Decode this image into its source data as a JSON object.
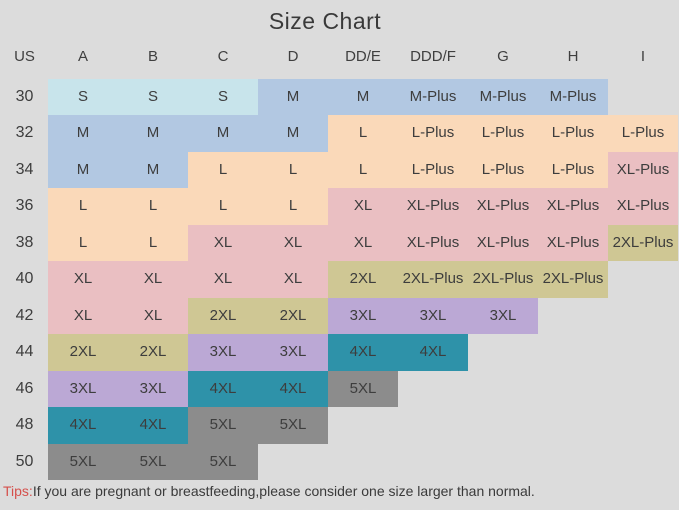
{
  "title": "Size Chart",
  "palette": {
    "background": "#dcdcdc",
    "cyan": "#c8e4eb",
    "blue": "#b2c8e2",
    "peach": "#fad9b9",
    "pink": "#eabfc2",
    "khaki": "#cfc794",
    "purple": "#bba8d5",
    "teal": "#2e92a9",
    "gray": "#8c8c8c",
    "cell_text": "#3d3d3d",
    "tips_accent": "#d5504c"
  },
  "chart_data": {
    "type": "table",
    "title": "Size Chart",
    "columns": [
      "US",
      "A",
      "B",
      "C",
      "D",
      "DD/E",
      "DDD/F",
      "G",
      "H",
      "I"
    ],
    "rows": [
      {
        "us": "30",
        "cells": [
          {
            "size": "S",
            "color": "cyan"
          },
          {
            "size": "S",
            "color": "cyan"
          },
          {
            "size": "S",
            "color": "cyan"
          },
          {
            "size": "M",
            "color": "blue"
          },
          {
            "size": "M",
            "color": "blue"
          },
          {
            "size": "M-Plus",
            "color": "blue"
          },
          {
            "size": "M-Plus",
            "color": "blue"
          },
          {
            "size": "M-Plus",
            "color": "blue"
          },
          {
            "size": "",
            "color": ""
          }
        ]
      },
      {
        "us": "32",
        "cells": [
          {
            "size": "M",
            "color": "blue"
          },
          {
            "size": "M",
            "color": "blue"
          },
          {
            "size": "M",
            "color": "blue"
          },
          {
            "size": "M",
            "color": "blue"
          },
          {
            "size": "L",
            "color": "peach"
          },
          {
            "size": "L-Plus",
            "color": "peach"
          },
          {
            "size": "L-Plus",
            "color": "peach"
          },
          {
            "size": "L-Plus",
            "color": "peach"
          },
          {
            "size": "L-Plus",
            "color": "peach"
          }
        ]
      },
      {
        "us": "34",
        "cells": [
          {
            "size": "M",
            "color": "blue"
          },
          {
            "size": "M",
            "color": "blue"
          },
          {
            "size": "L",
            "color": "peach"
          },
          {
            "size": "L",
            "color": "peach"
          },
          {
            "size": "L",
            "color": "peach"
          },
          {
            "size": "L-Plus",
            "color": "peach"
          },
          {
            "size": "L-Plus",
            "color": "peach"
          },
          {
            "size": "L-Plus",
            "color": "peach"
          },
          {
            "size": "XL-Plus",
            "color": "pink"
          }
        ]
      },
      {
        "us": "36",
        "cells": [
          {
            "size": "L",
            "color": "peach"
          },
          {
            "size": "L",
            "color": "peach"
          },
          {
            "size": "L",
            "color": "peach"
          },
          {
            "size": "L",
            "color": "peach"
          },
          {
            "size": "XL",
            "color": "pink"
          },
          {
            "size": "XL-Plus",
            "color": "pink"
          },
          {
            "size": "XL-Plus",
            "color": "pink"
          },
          {
            "size": "XL-Plus",
            "color": "pink"
          },
          {
            "size": "XL-Plus",
            "color": "pink"
          }
        ]
      },
      {
        "us": "38",
        "cells": [
          {
            "size": "L",
            "color": "peach"
          },
          {
            "size": "L",
            "color": "peach"
          },
          {
            "size": "XL",
            "color": "pink"
          },
          {
            "size": "XL",
            "color": "pink"
          },
          {
            "size": "XL",
            "color": "pink"
          },
          {
            "size": "XL-Plus",
            "color": "pink"
          },
          {
            "size": "XL-Plus",
            "color": "pink"
          },
          {
            "size": "XL-Plus",
            "color": "pink"
          },
          {
            "size": "2XL-Plus",
            "color": "khaki"
          }
        ]
      },
      {
        "us": "40",
        "cells": [
          {
            "size": "XL",
            "color": "pink"
          },
          {
            "size": "XL",
            "color": "pink"
          },
          {
            "size": "XL",
            "color": "pink"
          },
          {
            "size": "XL",
            "color": "pink"
          },
          {
            "size": "2XL",
            "color": "khaki"
          },
          {
            "size": "2XL-Plus",
            "color": "khaki"
          },
          {
            "size": "2XL-Plus",
            "color": "khaki"
          },
          {
            "size": "2XL-Plus",
            "color": "khaki"
          },
          {
            "size": "",
            "color": ""
          }
        ]
      },
      {
        "us": "42",
        "cells": [
          {
            "size": "XL",
            "color": "pink"
          },
          {
            "size": "XL",
            "color": "pink"
          },
          {
            "size": "2XL",
            "color": "khaki"
          },
          {
            "size": "2XL",
            "color": "khaki"
          },
          {
            "size": "3XL",
            "color": "purple"
          },
          {
            "size": "3XL",
            "color": "purple"
          },
          {
            "size": "3XL",
            "color": "purple"
          },
          {
            "size": "",
            "color": ""
          },
          {
            "size": "",
            "color": ""
          }
        ]
      },
      {
        "us": "44",
        "cells": [
          {
            "size": "2XL",
            "color": "khaki"
          },
          {
            "size": "2XL",
            "color": "khaki"
          },
          {
            "size": "3XL",
            "color": "purple"
          },
          {
            "size": "3XL",
            "color": "purple"
          },
          {
            "size": "4XL",
            "color": "teal"
          },
          {
            "size": "4XL",
            "color": "teal"
          },
          {
            "size": "",
            "color": ""
          },
          {
            "size": "",
            "color": ""
          },
          {
            "size": "",
            "color": ""
          }
        ]
      },
      {
        "us": "46",
        "cells": [
          {
            "size": "3XL",
            "color": "purple"
          },
          {
            "size": "3XL",
            "color": "purple"
          },
          {
            "size": "4XL",
            "color": "teal"
          },
          {
            "size": "4XL",
            "color": "teal"
          },
          {
            "size": "5XL",
            "color": "gray"
          },
          {
            "size": "",
            "color": ""
          },
          {
            "size": "",
            "color": ""
          },
          {
            "size": "",
            "color": ""
          },
          {
            "size": "",
            "color": ""
          }
        ]
      },
      {
        "us": "48",
        "cells": [
          {
            "size": "4XL",
            "color": "teal"
          },
          {
            "size": "4XL",
            "color": "teal"
          },
          {
            "size": "5XL",
            "color": "gray"
          },
          {
            "size": "5XL",
            "color": "gray"
          },
          {
            "size": "",
            "color": ""
          },
          {
            "size": "",
            "color": ""
          },
          {
            "size": "",
            "color": ""
          },
          {
            "size": "",
            "color": ""
          },
          {
            "size": "",
            "color": ""
          }
        ]
      },
      {
        "us": "50",
        "cells": [
          {
            "size": "5XL",
            "color": "gray"
          },
          {
            "size": "5XL",
            "color": "gray"
          },
          {
            "size": "5XL",
            "color": "gray"
          },
          {
            "size": "",
            "color": ""
          },
          {
            "size": "",
            "color": ""
          },
          {
            "size": "",
            "color": ""
          },
          {
            "size": "",
            "color": ""
          },
          {
            "size": "",
            "color": ""
          },
          {
            "size": "",
            "color": ""
          }
        ]
      }
    ]
  },
  "tips": {
    "label": "Tips:",
    "text": "If you are pregnant or breastfeeding,please consider one size larger than normal."
  }
}
